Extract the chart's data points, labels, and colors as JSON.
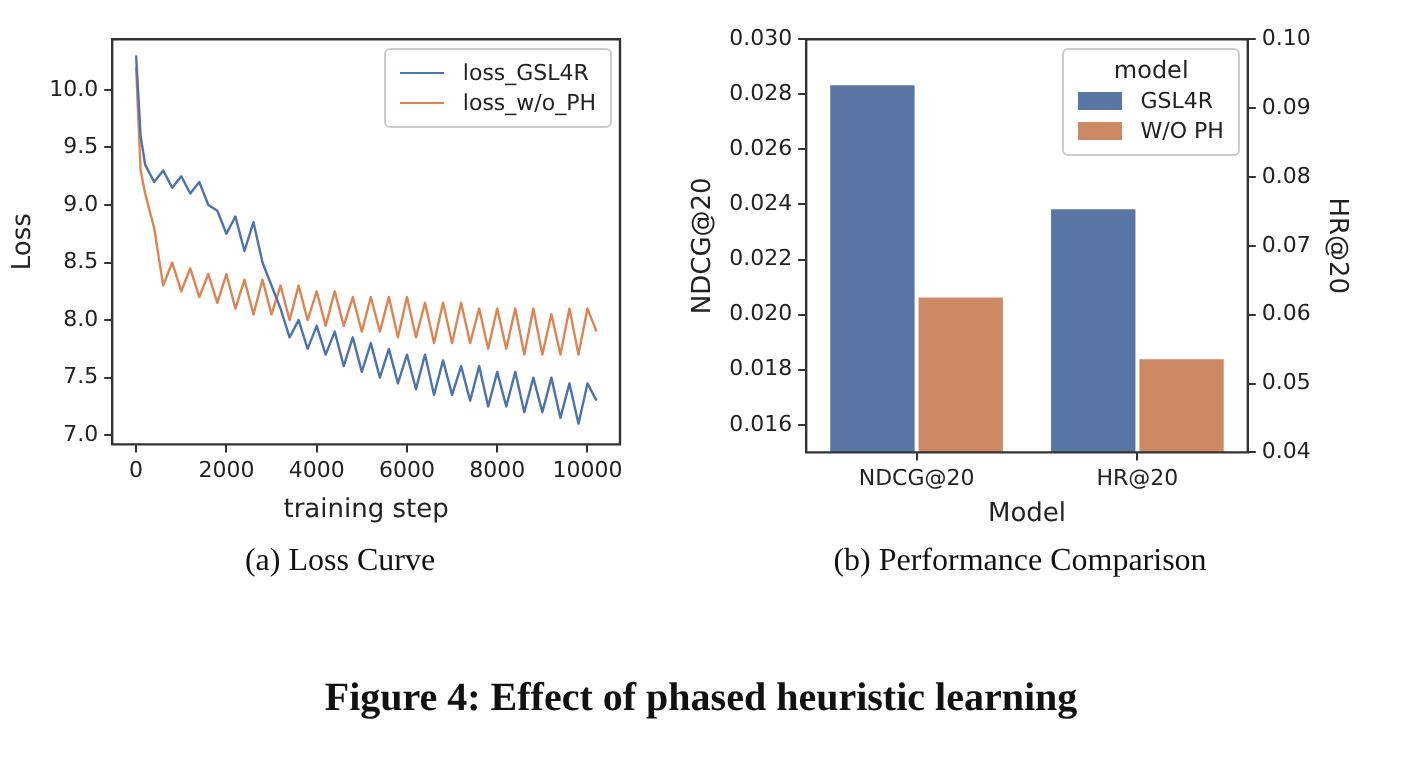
{
  "chart_data": [
    {
      "type": "line",
      "title": "(a) Loss Curve",
      "xlabel": "training step",
      "ylabel": "Loss",
      "x": [
        0,
        100,
        200,
        400,
        600,
        800,
        1000,
        1200,
        1400,
        1600,
        1800,
        2000,
        2200,
        2400,
        2600,
        2800,
        3000,
        3200,
        3400,
        3600,
        3800,
        4000,
        4200,
        4400,
        4600,
        4800,
        5000,
        5200,
        5400,
        5600,
        5800,
        6000,
        6200,
        6400,
        6600,
        6800,
        7000,
        7200,
        7400,
        7600,
        7800,
        8000,
        8200,
        8400,
        8600,
        8800,
        9000,
        9200,
        9400,
        9600,
        9800,
        10000,
        10200
      ],
      "series": [
        {
          "name": "loss_GSL4R",
          "color": "#4c72b0",
          "values": [
            10.3,
            9.6,
            9.35,
            9.2,
            9.3,
            9.15,
            9.25,
            9.1,
            9.2,
            9.0,
            8.95,
            8.75,
            8.9,
            8.6,
            8.85,
            8.5,
            8.3,
            8.1,
            7.85,
            8.0,
            7.75,
            7.95,
            7.7,
            7.9,
            7.6,
            7.85,
            7.55,
            7.8,
            7.5,
            7.75,
            7.45,
            7.7,
            7.4,
            7.7,
            7.35,
            7.65,
            7.35,
            7.6,
            7.3,
            7.6,
            7.25,
            7.55,
            7.25,
            7.55,
            7.2,
            7.5,
            7.2,
            7.5,
            7.15,
            7.45,
            7.1,
            7.45,
            7.3
          ]
        },
        {
          "name": "loss_w/o_PH",
          "color": "#dd8452",
          "values": [
            10.2,
            9.3,
            9.1,
            8.8,
            8.3,
            8.5,
            8.25,
            8.45,
            8.2,
            8.4,
            8.15,
            8.4,
            8.1,
            8.35,
            8.05,
            8.35,
            8.05,
            8.3,
            8.0,
            8.3,
            8.0,
            8.25,
            7.95,
            8.25,
            7.95,
            8.2,
            7.9,
            8.2,
            7.9,
            8.2,
            7.85,
            8.2,
            7.85,
            8.15,
            7.8,
            8.15,
            7.8,
            8.15,
            7.8,
            8.1,
            7.75,
            8.1,
            7.75,
            8.1,
            7.7,
            8.1,
            7.7,
            8.05,
            7.7,
            8.1,
            7.7,
            8.1,
            7.9
          ]
        }
      ],
      "xlim": [
        -530,
        10720
      ],
      "xticks": [
        0,
        2000,
        4000,
        6000,
        8000,
        10000
      ],
      "ylim": [
        6.92,
        10.44
      ],
      "yticks": [
        {
          "value": 7,
          "label": "7.0"
        },
        7.5,
        {
          "value": 8,
          "label": "8.0"
        },
        8.5,
        {
          "value": 9,
          "label": "9.0"
        },
        9.5,
        {
          "value": 10,
          "label": "10.0"
        }
      ],
      "grid": false,
      "legend": "top right",
      "annotations": [
        "Figure 4: Effect of phased heuristic learning"
      ]
    },
    {
      "type": "bar",
      "title": "(b) Performance Comparison",
      "xlabel": "Model",
      "ylabel": "NDCG@20",
      "y2label": "HR@20",
      "legend_title": "model",
      "categories": [
        "NDCG@20",
        "HR@20"
      ],
      "series": [
        {
          "name": "GSL4R",
          "color": "#5875a4",
          "values": [
            0.0284,
            null
          ]
        },
        {
          "name": "W/O PH",
          "color": "#cc8963",
          "values": [
            0.0207,
            null
          ]
        },
        {
          "color": "#5875a4",
          "axis": "y2",
          "values": [
            null,
            0.0756
          ]
        },
        {
          "color": "#cc8963",
          "axis": "y2",
          "values": [
            null,
            0.0538
          ]
        }
      ],
      "ylim": [
        0.015,
        0.03
      ],
      "yticks": [
        {
          "value": 0.016,
          "label": "0.016"
        },
        {
          "value": 0.018,
          "label": "0.018"
        },
        {
          "value": 0.02,
          "label": "0.020"
        },
        {
          "value": 0.022,
          "label": "0.022"
        },
        {
          "value": 0.024,
          "label": "0.024"
        },
        {
          "value": 0.026,
          "label": "0.026"
        },
        {
          "value": 0.028,
          "label": "0.028"
        },
        {
          "value": 0.03,
          "label": "0.030"
        }
      ],
      "y2lim": [
        0.04,
        0.1
      ],
      "y2ticks": [
        0.04,
        0.05,
        0.06,
        0.07,
        0.08,
        0.09,
        {
          "value": 0.1,
          "label": "0.10"
        }
      ],
      "grid": false,
      "legend": "top right"
    }
  ]
}
